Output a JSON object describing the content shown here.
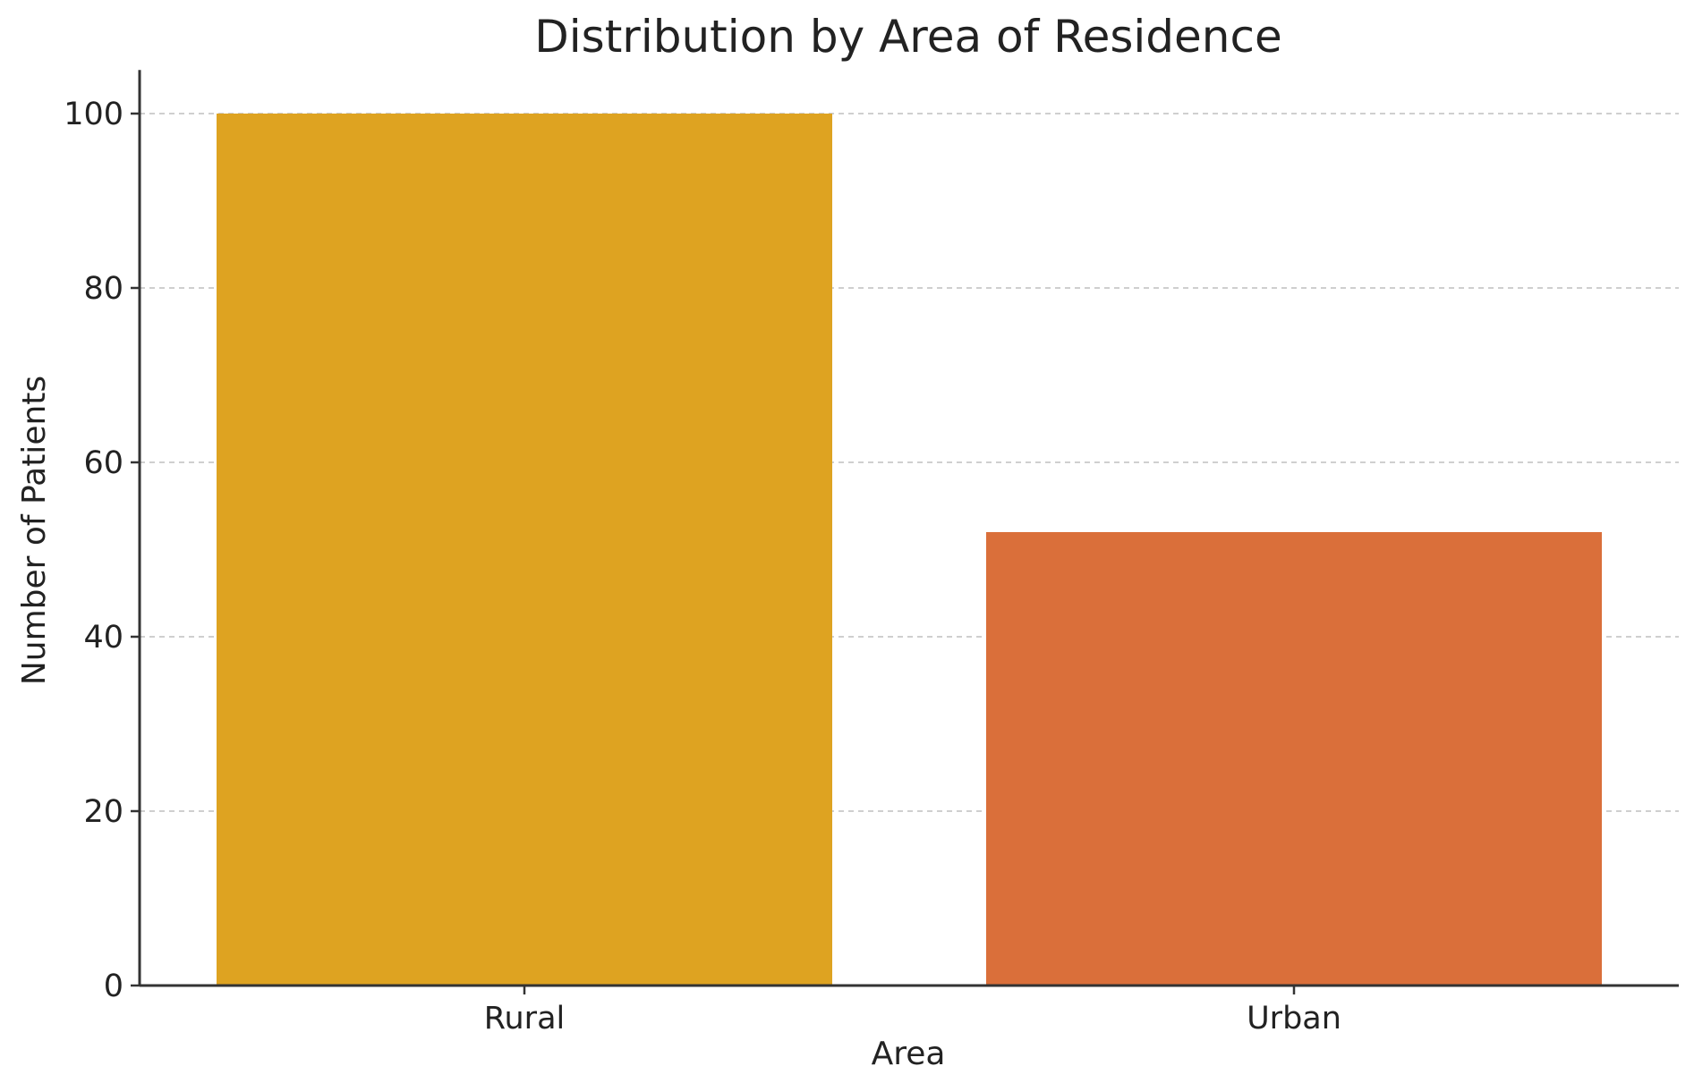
{
  "chart_data": {
    "type": "bar",
    "title": "Distribution by Area of Residence",
    "xlabel": "Area",
    "ylabel": "Number of Patients",
    "categories": [
      "Rural",
      "Urban"
    ],
    "values": [
      100,
      52
    ],
    "colors": [
      "#DEA321",
      "#DA6F3A"
    ],
    "ylim": [
      0,
      105
    ],
    "yticks": [
      "0",
      "20",
      "40",
      "60",
      "80",
      "100"
    ],
    "grid": "horizontal dashed",
    "legend": "none"
  }
}
